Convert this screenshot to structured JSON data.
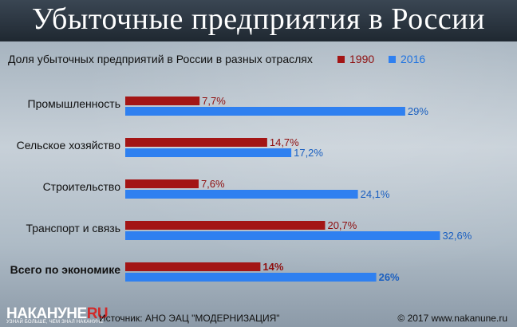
{
  "header": {
    "title": "Убыточные предприятия в России"
  },
  "chart_data": {
    "type": "bar",
    "orientation": "horizontal",
    "title": "Доля убыточных предприятий в России в разных отраслях",
    "categories": [
      "Промышленность",
      "Сельское хозяйство",
      "Строительство",
      "Транспорт и связь",
      "Всего по экономике"
    ],
    "series": [
      {
        "name": "1990",
        "color": "#a31515",
        "values": [
          7.7,
          14.7,
          7.6,
          20.7,
          14
        ]
      },
      {
        "name": "2016",
        "color": "#2f80f0",
        "values": [
          29,
          17.2,
          24.1,
          32.6,
          26
        ]
      }
    ],
    "value_labels": [
      [
        "7,7%",
        "14,7%",
        "7,6%",
        "20,7%",
        "14%"
      ],
      [
        "29%",
        "17,2%",
        "24,1%",
        "32,6%",
        "26%"
      ]
    ],
    "emphasized_category": "Всего по экономике",
    "legend_position": "top-right",
    "grid": false,
    "xlim": [
      0,
      35
    ]
  },
  "footer": {
    "brand_main": "НАКАНУНЕ",
    "brand_suffix": "RU",
    "tagline": "УЗНАЙ БОЛЬШЕ, ЧЕМ ЗНАЛ НАКАНУНЕ",
    "source": "Источник: АНО ЭАЦ \"МОДЕРНИЗАЦИЯ\"",
    "copyright": "© 2017 www.nakanune.ru"
  }
}
